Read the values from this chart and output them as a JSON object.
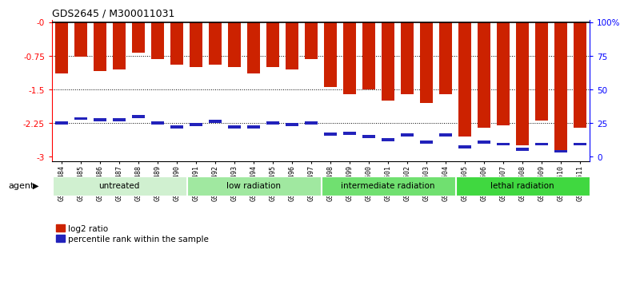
{
  "title": "GDS2645 / M300011031",
  "categories": [
    "GSM158484",
    "GSM158485",
    "GSM158486",
    "GSM158487",
    "GSM158488",
    "GSM158489",
    "GSM158490",
    "GSM158491",
    "GSM158492",
    "GSM158493",
    "GSM158494",
    "GSM158495",
    "GSM158496",
    "GSM158497",
    "GSM158498",
    "GSM158499",
    "GSM158500",
    "GSM158501",
    "GSM158502",
    "GSM158503",
    "GSM158504",
    "GSM158505",
    "GSM158506",
    "GSM158507",
    "GSM158508",
    "GSM158509",
    "GSM158510",
    "GSM158511"
  ],
  "log2_values": [
    -1.15,
    -0.78,
    -1.1,
    -1.05,
    -0.68,
    -0.82,
    -0.95,
    -1.0,
    -0.95,
    -1.0,
    -1.15,
    -1.0,
    -1.05,
    -0.82,
    -1.45,
    -1.6,
    -1.5,
    -1.75,
    -1.6,
    -1.8,
    -1.6,
    -2.55,
    -2.35,
    -2.3,
    -2.75,
    -2.2,
    -2.85,
    -2.35
  ],
  "percentile_values": [
    -2.25,
    -2.15,
    -2.18,
    -2.18,
    -2.1,
    -2.25,
    -2.33,
    -2.28,
    -2.22,
    -2.33,
    -2.33,
    -2.25,
    -2.28,
    -2.25,
    -2.5,
    -2.48,
    -2.55,
    -2.63,
    -2.52,
    -2.68,
    -2.52,
    -2.78,
    -2.68,
    -2.72,
    -2.83,
    -2.72,
    -2.88,
    -2.72
  ],
  "group_labels": [
    "untreated",
    "low radiation",
    "intermediate radiation",
    "lethal radiation"
  ],
  "group_colors": [
    "#d0f0d0",
    "#a0e8a0",
    "#70e070",
    "#40d840"
  ],
  "group_ranges": [
    [
      0,
      7
    ],
    [
      7,
      14
    ],
    [
      14,
      21
    ],
    [
      21,
      28
    ]
  ],
  "agent_label": "agent",
  "left_yticks": [
    0,
    -0.75,
    -1.5,
    -2.25,
    -3.0
  ],
  "left_yticklabels": [
    "-0",
    "-0.75",
    "-1.5",
    "-2.25",
    "-3"
  ],
  "right_tick_positions": [
    0,
    -0.75,
    -1.5,
    -2.25,
    -3.0
  ],
  "right_yticklabels": [
    "100%",
    "75",
    "50",
    "25",
    "0"
  ],
  "bar_color": "#cc2200",
  "percentile_color": "#2222bb",
  "background_color": "#ffffff",
  "ylim": [
    -3.1,
    0.05
  ],
  "grid_values": [
    -0.75,
    -1.5,
    -2.25
  ]
}
